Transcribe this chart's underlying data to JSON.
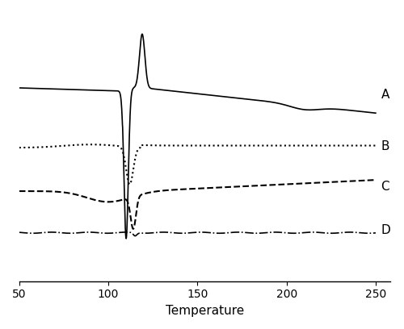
{
  "xlim": [
    50,
    250
  ],
  "xlabel": "Temperature",
  "xticks": [
    50,
    100,
    150,
    200,
    250
  ],
  "background_color": "#ffffff",
  "line_color": "#000000",
  "label_A": "A",
  "label_B": "B",
  "label_C": "C",
  "label_D": "D",
  "figsize": [
    5.0,
    4.08
  ],
  "dpi": 100
}
